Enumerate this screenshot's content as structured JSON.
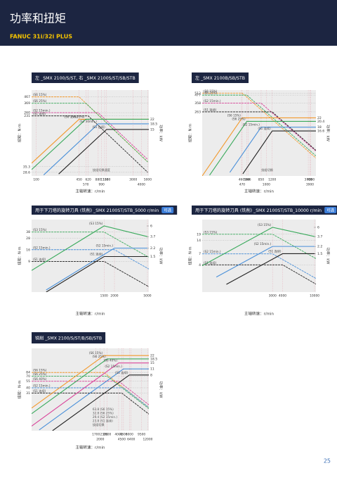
{
  "header": {
    "title": "功率和扭矩",
    "subtitle": "FANUC 31i/32i PLUS"
  },
  "page_number": 25,
  "chart_data": [
    {
      "type": "line",
      "title": "左 _SMX 2100/S/ST, 右 _SMX 2100S/ST/SB/STB",
      "x_label": "主轴转速：r/min",
      "y_label": "扭矩：N·m",
      "y2_label": "功率：kW",
      "xlog": true,
      "ylog": true,
      "grid": true,
      "xlim": [
        85,
        5200
      ],
      "ylim": [
        25,
        600
      ],
      "y2lim": [
        2.6,
        66
      ],
      "xticks": [
        100,
        450,
        570,
        620,
        880,
        990,
        1100,
        1180,
        3000,
        4000,
        5000
      ],
      "yticks": [
        28.6,
        35.3,
        231,
        260,
        369,
        467
      ],
      "y2ticks": [
        15,
        18.5,
        22
      ],
      "annotations": [
        "绕组切换速度"
      ],
      "series": [
        {
          "name": "(S6 15%)",
          "color": "#f29a2e",
          "x": [
            85,
            450,
            5000
          ],
          "values": [
            467,
            467,
            42
          ]
        },
        {
          "name": "(S6 25%)",
          "color": "#3aaa5c",
          "x": [
            85,
            570,
            5000
          ],
          "values": [
            369,
            369,
            42
          ]
        },
        {
          "name": "(S2 15min.)",
          "color": "#d9459a",
          "x": [
            85,
            880,
            5000
          ],
          "values": [
            260,
            260,
            46
          ]
        },
        {
          "name": "(S1 连续)",
          "color": "#222222",
          "x": [
            85,
            620,
            5000
          ],
          "values": [
            231,
            231,
            28.6
          ]
        },
        {
          "name": "(S6 15%)",
          "color": "#f29a2e",
          "axis": "y2",
          "x": [
            85,
            450,
            5200
          ],
          "values": [
            4.2,
            22,
            22
          ]
        },
        {
          "name": "(S6 25%)",
          "color": "#3aaa5c",
          "axis": "y2",
          "x": [
            85,
            570,
            5200
          ],
          "values": [
            3.3,
            22,
            22
          ]
        },
        {
          "name": "(S2 30min.)",
          "color": "#4a90d9",
          "axis": "y2",
          "x": [
            130,
            880,
            5200
          ],
          "values": [
            2.7,
            18.5,
            18.5
          ]
        },
        {
          "name": "(S1 连续)",
          "color": "#222222",
          "axis": "y2",
          "x": [
            220,
            1180,
            5200
          ],
          "values": [
            2.8,
            15,
            15
          ]
        }
      ]
    },
    {
      "type": "line",
      "title": "左 _SMX 2100B/SB/STB",
      "x_label": "主轴转速：r/min",
      "y_label": "扭矩：N·m",
      "y2_label": "功率：kW",
      "xlog": true,
      "ylog": true,
      "grid": true,
      "xlim": [
        135,
        4700
      ],
      "ylim": [
        27,
        570
      ],
      "y2lim": [
        6.3,
        40
      ],
      "xticks": [
        460,
        470,
        544,
        566,
        850,
        1000,
        1200,
        3700,
        3900,
        4000
      ],
      "yticks": [
        263,
        358,
        477,
        512
      ],
      "y2ticks": [
        16.6,
        18,
        20.4,
        22
      ],
      "annotations": [
        "绕组切换"
      ],
      "series": [
        {
          "name": "(S6 15%)",
          "color": "#f29a2e",
          "x": [
            135,
            470,
            4700
          ],
          "values": [
            512,
            512,
            51
          ]
        },
        {
          "name": "(S6 25%)",
          "color": "#3aaa5c",
          "x": [
            135,
            544,
            4700
          ],
          "values": [
            477,
            477,
            55
          ]
        },
        {
          "name": "(S2 15min.)",
          "color": "#d9459a",
          "x": [
            135,
            850,
            4700
          ],
          "values": [
            358,
            358,
            65
          ]
        },
        {
          "name": "(S1 连续)",
          "color": "#222222",
          "x": [
            135,
            1200,
            4700
          ],
          "values": [
            263,
            263,
            67
          ]
        },
        {
          "name": "(S6 15%)",
          "color": "#f29a2e",
          "axis": "y2",
          "x": [
            135,
            470,
            4700
          ],
          "values": [
            6.3,
            22,
            22
          ]
        },
        {
          "name": "(S6 25%)",
          "color": "#3aaa5c",
          "axis": "y2",
          "x": [
            170,
            544,
            4700
          ],
          "values": [
            6.4,
            20.4,
            20.4
          ]
        },
        {
          "name": "(S2 15min.)",
          "color": "#4a90d9",
          "axis": "y2",
          "x": [
            320,
            850,
            4700
          ],
          "values": [
            6.8,
            18,
            18
          ]
        },
        {
          "name": "(S1 连续)",
          "color": "#222222",
          "axis": "y2",
          "x": [
            480,
            1200,
            4700
          ],
          "values": [
            6.6,
            16.6,
            16.6
          ]
        }
      ]
    },
    {
      "type": "line",
      "title": "用于下刀塔的旋转刀具 (铣削) _SMX 2100ST/STB_5000 r/min",
      "badge": "可选",
      "x_label": "主轴转速：r/min",
      "y_label": "扭矩：N·m",
      "y2_label": "功率：kW",
      "xlog": true,
      "ylog": true,
      "grid": true,
      "xlim": [
        200,
        5200
      ],
      "ylim": [
        2,
        70
      ],
      "y2lim": [
        0.3,
        8
      ],
      "xticks": [
        1500,
        2000,
        5000
      ],
      "yticks": [
        9,
        16,
        28,
        38
      ],
      "y2ticks": [
        1.5,
        2.2,
        3.7,
        6
      ],
      "series": [
        {
          "name": "(S3 15%)",
          "color": "#3aaa5c",
          "x": [
            200,
            1500,
            5200
          ],
          "values": [
            38,
            38,
            11
          ]
        },
        {
          "name": "(S2 15min.)",
          "color": "#4a90d9",
          "x": [
            200,
            2000,
            5200
          ],
          "values": [
            16,
            16,
            6.2
          ]
        },
        {
          "name": "(S1 连续)",
          "color": "#222222",
          "x": [
            200,
            1500,
            5200
          ],
          "values": [
            9,
            9,
            2.6
          ]
        },
        {
          "name": "(S3 15%)",
          "color": "#3aaa5c",
          "axis": "y2",
          "x": [
            200,
            1500,
            5000
          ],
          "values": [
            0.8,
            6,
            3.7
          ]
        },
        {
          "name": "(S2 15min.)",
          "color": "#4a90d9",
          "axis": "y2",
          "x": [
            300,
            2000,
            5000
          ],
          "values": [
            0.33,
            2.2,
            2.2
          ]
        },
        {
          "name": "(S1 连续)",
          "color": "#222222",
          "axis": "y2",
          "x": [
            300,
            1500,
            5000
          ],
          "values": [
            0.3,
            1.5,
            1.5
          ]
        }
      ]
    },
    {
      "type": "line",
      "title": "用于下刀塔的旋转刀具 (铣削) _SMX 2100ST/STB_10000 r/min",
      "badge": "可选",
      "x_label": "主轴转速：r/min",
      "y_label": "扭矩：N·m",
      "y2_label": "功率：kW",
      "xlog": true,
      "ylog": true,
      "grid": true,
      "xlim": [
        400,
        10400
      ],
      "ylim": [
        1,
        40
      ],
      "y2lim": [
        0.2,
        9
      ],
      "xticks": [
        3000,
        4000,
        10000
      ],
      "yticks": [
        4,
        7,
        14,
        19
      ],
      "y2ticks": [
        1.5,
        2.2,
        3.7,
        6
      ],
      "series": [
        {
          "name": "(S3 15%)",
          "color": "#3aaa5c",
          "x": [
            400,
            3000,
            10400
          ],
          "values": [
            19,
            19,
            5.5
          ]
        },
        {
          "name": "(S2 15min.)",
          "color": "#4a90d9",
          "x": [
            400,
            3000,
            10400
          ],
          "values": [
            7,
            7,
            2
          ]
        },
        {
          "name": "(S1 连续)",
          "color": "#222222",
          "x": [
            400,
            4000,
            10400
          ],
          "values": [
            4,
            4,
            1.5
          ]
        },
        {
          "name": "(S3 15%)",
          "color": "#3aaa5c",
          "axis": "y2",
          "x": [
            400,
            3000,
            10000
          ],
          "values": [
            0.8,
            6,
            3.7
          ]
        },
        {
          "name": "(S2 15min.)",
          "color": "#4a90d9",
          "axis": "y2",
          "x": [
            600,
            3000,
            10000
          ],
          "values": [
            0.44,
            2.2,
            2.2
          ]
        },
        {
          "name": "(S1 连续)",
          "color": "#222222",
          "axis": "y2",
          "x": [
            800,
            4000,
            10000
          ],
          "values": [
            0.3,
            1.5,
            1.5
          ]
        }
      ]
    },
    {
      "type": "line",
      "title": "铣削 _SMX 2100/S/ST/B/SB/STB",
      "x_label": "主轴转速：r/min",
      "y_label": "扭矩：N·m",
      "y2_label": "功率：kW",
      "xlog": true,
      "ylog": true,
      "grid": true,
      "xlim": [
        150,
        12500
      ],
      "ylim": [
        5,
        270
      ],
      "y2lim": [
        0.44,
        32
      ],
      "xticks": [
        1700,
        2000,
        2300,
        2600,
        4000,
        4500,
        4800,
        6000,
        6400,
        9500,
        12000
      ],
      "yticks": [
        31,
        40,
        55,
        70,
        84
      ],
      "y2ticks": [
        8,
        11,
        15,
        18.5,
        22
      ],
      "annotations": [
        "63.8 (S6 15%)",
        "32.8 (S6 25%)",
        "29.4 (S2 15min.)",
        "23.8 (S1 连续)",
        "绕组切换"
      ],
      "series": [
        {
          "name": "(S6 15%)",
          "color": "#f29a2e",
          "x": [
            150,
            2300,
            12500
          ],
          "values": [
            84,
            84,
            15.5
          ]
        },
        {
          "name": "(S6 25%)",
          "color": "#3aaa5c",
          "x": [
            150,
            2600,
            12500
          ],
          "values": [
            70,
            70,
            14.6
          ]
        },
        {
          "name": "(S6 40%)",
          "color": "#d9459a",
          "x": [
            150,
            4000,
            12500
          ],
          "values": [
            55,
            55,
            17.6
          ]
        },
        {
          "name": "(S2 15min.)",
          "color": "#4a90d9",
          "x": [
            150,
            4800,
            12500
          ],
          "values": [
            40,
            40,
            15.4
          ]
        },
        {
          "name": "(S1 连续)",
          "color": "#222222",
          "x": [
            150,
            4500,
            12500
          ],
          "values": [
            31,
            31,
            11.2
          ]
        },
        {
          "name": "(S6 15%)",
          "color": "#f29a2e",
          "axis": "y2",
          "x": [
            150,
            2300,
            12500
          ],
          "values": [
            1.43,
            22,
            22
          ]
        },
        {
          "name": "(S6 25%)",
          "color": "#3aaa5c",
          "axis": "y2",
          "x": [
            150,
            2600,
            12500
          ],
          "values": [
            1.07,
            18.5,
            18.5
          ]
        },
        {
          "name": "(S6 40%)",
          "color": "#d9459a",
          "axis": "y2",
          "x": [
            150,
            4000,
            12500
          ],
          "values": [
            0.56,
            15,
            15
          ]
        },
        {
          "name": "(S2 15min.)",
          "color": "#4a90d9",
          "axis": "y2",
          "x": [
            200,
            4800,
            12500
          ],
          "values": [
            0.46,
            11,
            11
          ]
        },
        {
          "name": "(S1 连续)",
          "color": "#222222",
          "axis": "y2",
          "x": [
            330,
            6000,
            12500
          ],
          "values": [
            0.44,
            8,
            8
          ]
        }
      ]
    }
  ]
}
